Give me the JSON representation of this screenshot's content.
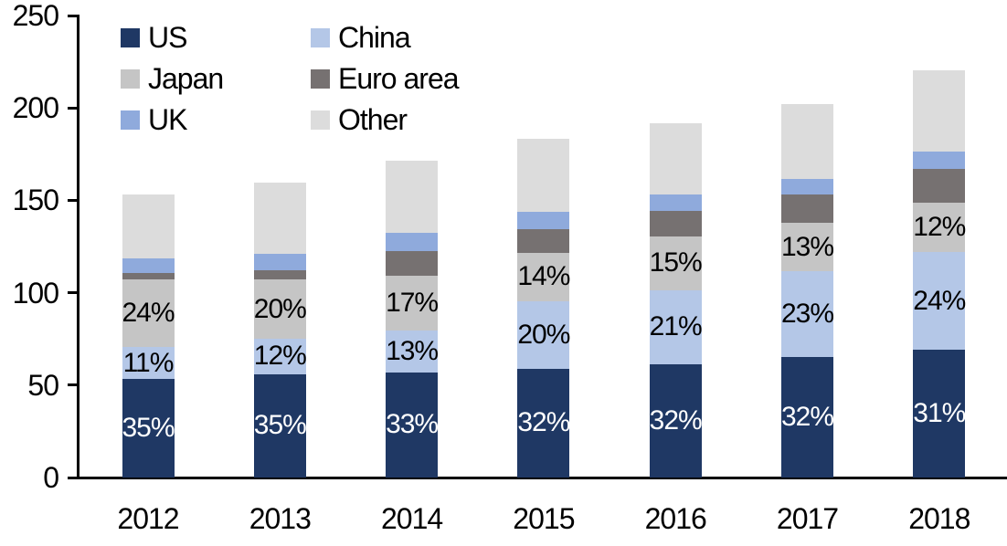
{
  "chart_data": {
    "type": "bar",
    "stacked": true,
    "title": "",
    "xlabel": "",
    "ylabel": "",
    "x": [
      "2012",
      "2013",
      "2014",
      "2015",
      "2016",
      "2017",
      "2018"
    ],
    "ylim": [
      0,
      250
    ],
    "yticks": [
      0,
      50,
      100,
      150,
      200,
      250
    ],
    "grid": false,
    "legend_position": "top-left-two-columns",
    "axis_color": "#000000",
    "background": "#ffffff",
    "series": [
      {
        "name": "US",
        "color": "#1f3864",
        "values": [
          53.5,
          56,
          57,
          59,
          61.5,
          65,
          69
        ],
        "labels": [
          "35%",
          "35%",
          "33%",
          "32%",
          "32%",
          "32%",
          "31%"
        ],
        "label_color": "#ffffff"
      },
      {
        "name": "China",
        "color": "#b4c7e7",
        "values": [
          17,
          19,
          22.5,
          36.5,
          40,
          46.5,
          53
        ],
        "labels": [
          "11%",
          "12%",
          "13%",
          "20%",
          "21%",
          "23%",
          "24%"
        ],
        "label_color": "#000000"
      },
      {
        "name": "Japan",
        "color": "#c5c5c5",
        "values": [
          36.5,
          32,
          29.5,
          26,
          29,
          26.5,
          26.5
        ],
        "labels": [
          "24%",
          "20%",
          "17%",
          "14%",
          "15%",
          "13%",
          "12%"
        ],
        "label_color": "#000000"
      },
      {
        "name": "Euro area",
        "color": "#767171",
        "values": [
          3.5,
          5,
          13.5,
          13,
          14,
          15,
          18.5
        ],
        "labels": null,
        "label_color": null
      },
      {
        "name": "UK",
        "color": "#8faadc",
        "values": [
          8,
          9,
          10,
          9.5,
          8.5,
          8.5,
          9.5
        ],
        "labels": null,
        "label_color": null
      },
      {
        "name": "Other",
        "color": "#dcdcdc",
        "values": [
          34.5,
          38.5,
          39,
          39.5,
          38.5,
          40.5,
          44
        ],
        "labels": null,
        "label_color": null
      }
    ],
    "totals_approx": [
      153,
      159.5,
      171.5,
      183.5,
      191.5,
      202,
      220.5
    ]
  }
}
